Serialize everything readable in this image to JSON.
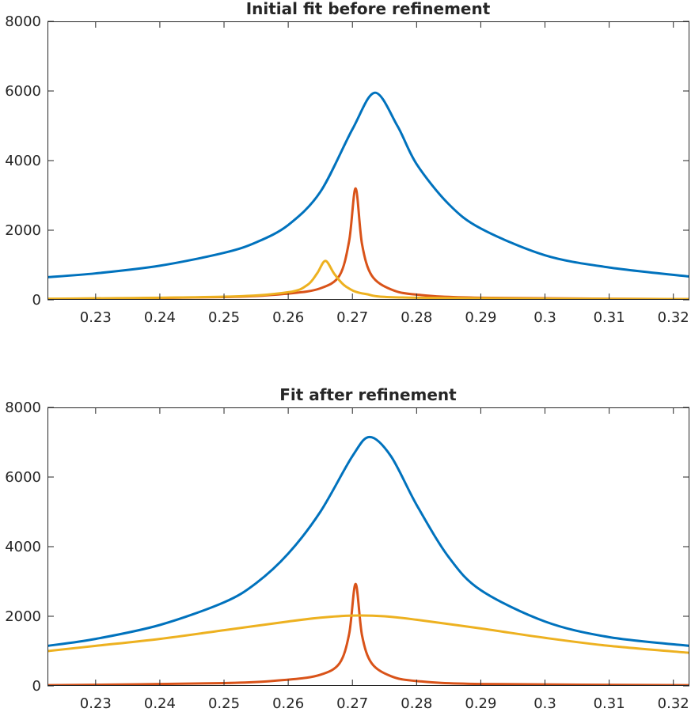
{
  "chart_data": [
    {
      "type": "line",
      "title": "Initial fit before refinement",
      "xlim": [
        0.2225,
        0.3225
      ],
      "ylim": [
        0,
        8000
      ],
      "xticks": [
        0.23,
        0.24,
        0.25,
        0.26,
        0.27,
        0.28,
        0.29,
        0.3,
        0.31,
        0.32
      ],
      "xtick_labels": [
        "0.23",
        "0.24",
        "0.25",
        "0.26",
        "0.27",
        "0.28",
        "0.29",
        "0.3",
        "0.31",
        "0.32"
      ],
      "yticks": [
        0,
        2000,
        4000,
        6000,
        8000
      ],
      "ytick_labels": [
        "0",
        "2000",
        "4000",
        "6000",
        "8000"
      ],
      "grid": false,
      "series": [
        {
          "color": "#0072BD",
          "x": [
            0.2225,
            0.23,
            0.24,
            0.25,
            0.255,
            0.26,
            0.265,
            0.27,
            0.2735,
            0.277,
            0.28,
            0.285,
            0.29,
            0.3,
            0.31,
            0.3225
          ],
          "y": [
            650,
            760,
            980,
            1350,
            1650,
            2150,
            3100,
            4900,
            5950,
            5000,
            3900,
            2750,
            2050,
            1280,
            930,
            670
          ]
        },
        {
          "color": "#D95319",
          "x": [
            0.2225,
            0.25,
            0.26,
            0.265,
            0.268,
            0.2695,
            0.2705,
            0.2715,
            0.273,
            0.276,
            0.28,
            0.29,
            0.3225
          ],
          "y": [
            20,
            80,
            180,
            330,
            700,
            1700,
            3200,
            1600,
            700,
            300,
            150,
            60,
            20
          ]
        },
        {
          "color": "#EDB120",
          "x": [
            0.2225,
            0.25,
            0.26,
            0.263,
            0.2645,
            0.2658,
            0.2672,
            0.269,
            0.272,
            0.28,
            0.3225
          ],
          "y": [
            30,
            90,
            220,
            430,
            760,
            1120,
            740,
            380,
            170,
            60,
            20
          ]
        }
      ]
    },
    {
      "type": "line",
      "title": "Fit after refinement",
      "xlim": [
        0.2225,
        0.3225
      ],
      "ylim": [
        0,
        8000
      ],
      "xticks": [
        0.23,
        0.24,
        0.25,
        0.26,
        0.27,
        0.28,
        0.29,
        0.3,
        0.31,
        0.32
      ],
      "xtick_labels": [
        "0.23",
        "0.24",
        "0.25",
        "0.26",
        "0.27",
        "0.28",
        "0.29",
        "0.3",
        "0.31",
        "0.32"
      ],
      "yticks": [
        0,
        2000,
        4000,
        6000,
        8000
      ],
      "ytick_labels": [
        "0",
        "2000",
        "4000",
        "6000",
        "8000"
      ],
      "grid": false,
      "series": [
        {
          "color": "#0072BD",
          "x": [
            0.2225,
            0.23,
            0.24,
            0.25,
            0.255,
            0.26,
            0.265,
            0.27,
            0.2727,
            0.276,
            0.28,
            0.285,
            0.29,
            0.3,
            0.31,
            0.3225
          ],
          "y": [
            1150,
            1350,
            1750,
            2400,
            2950,
            3800,
            5000,
            6600,
            7150,
            6600,
            5200,
            3700,
            2750,
            1850,
            1400,
            1150
          ]
        },
        {
          "color": "#D95319",
          "x": [
            0.2225,
            0.25,
            0.26,
            0.265,
            0.268,
            0.2695,
            0.2705,
            0.2715,
            0.273,
            0.276,
            0.28,
            0.29,
            0.3225
          ],
          "y": [
            20,
            80,
            180,
            320,
            650,
            1500,
            2930,
            1450,
            650,
            280,
            140,
            55,
            20
          ]
        },
        {
          "color": "#EDB120",
          "x": [
            0.2225,
            0.23,
            0.24,
            0.25,
            0.26,
            0.265,
            0.27,
            0.275,
            0.28,
            0.29,
            0.3,
            0.31,
            0.3225
          ],
          "y": [
            1000,
            1150,
            1350,
            1600,
            1850,
            1960,
            2020,
            2000,
            1900,
            1650,
            1380,
            1150,
            950
          ]
        }
      ]
    }
  ]
}
